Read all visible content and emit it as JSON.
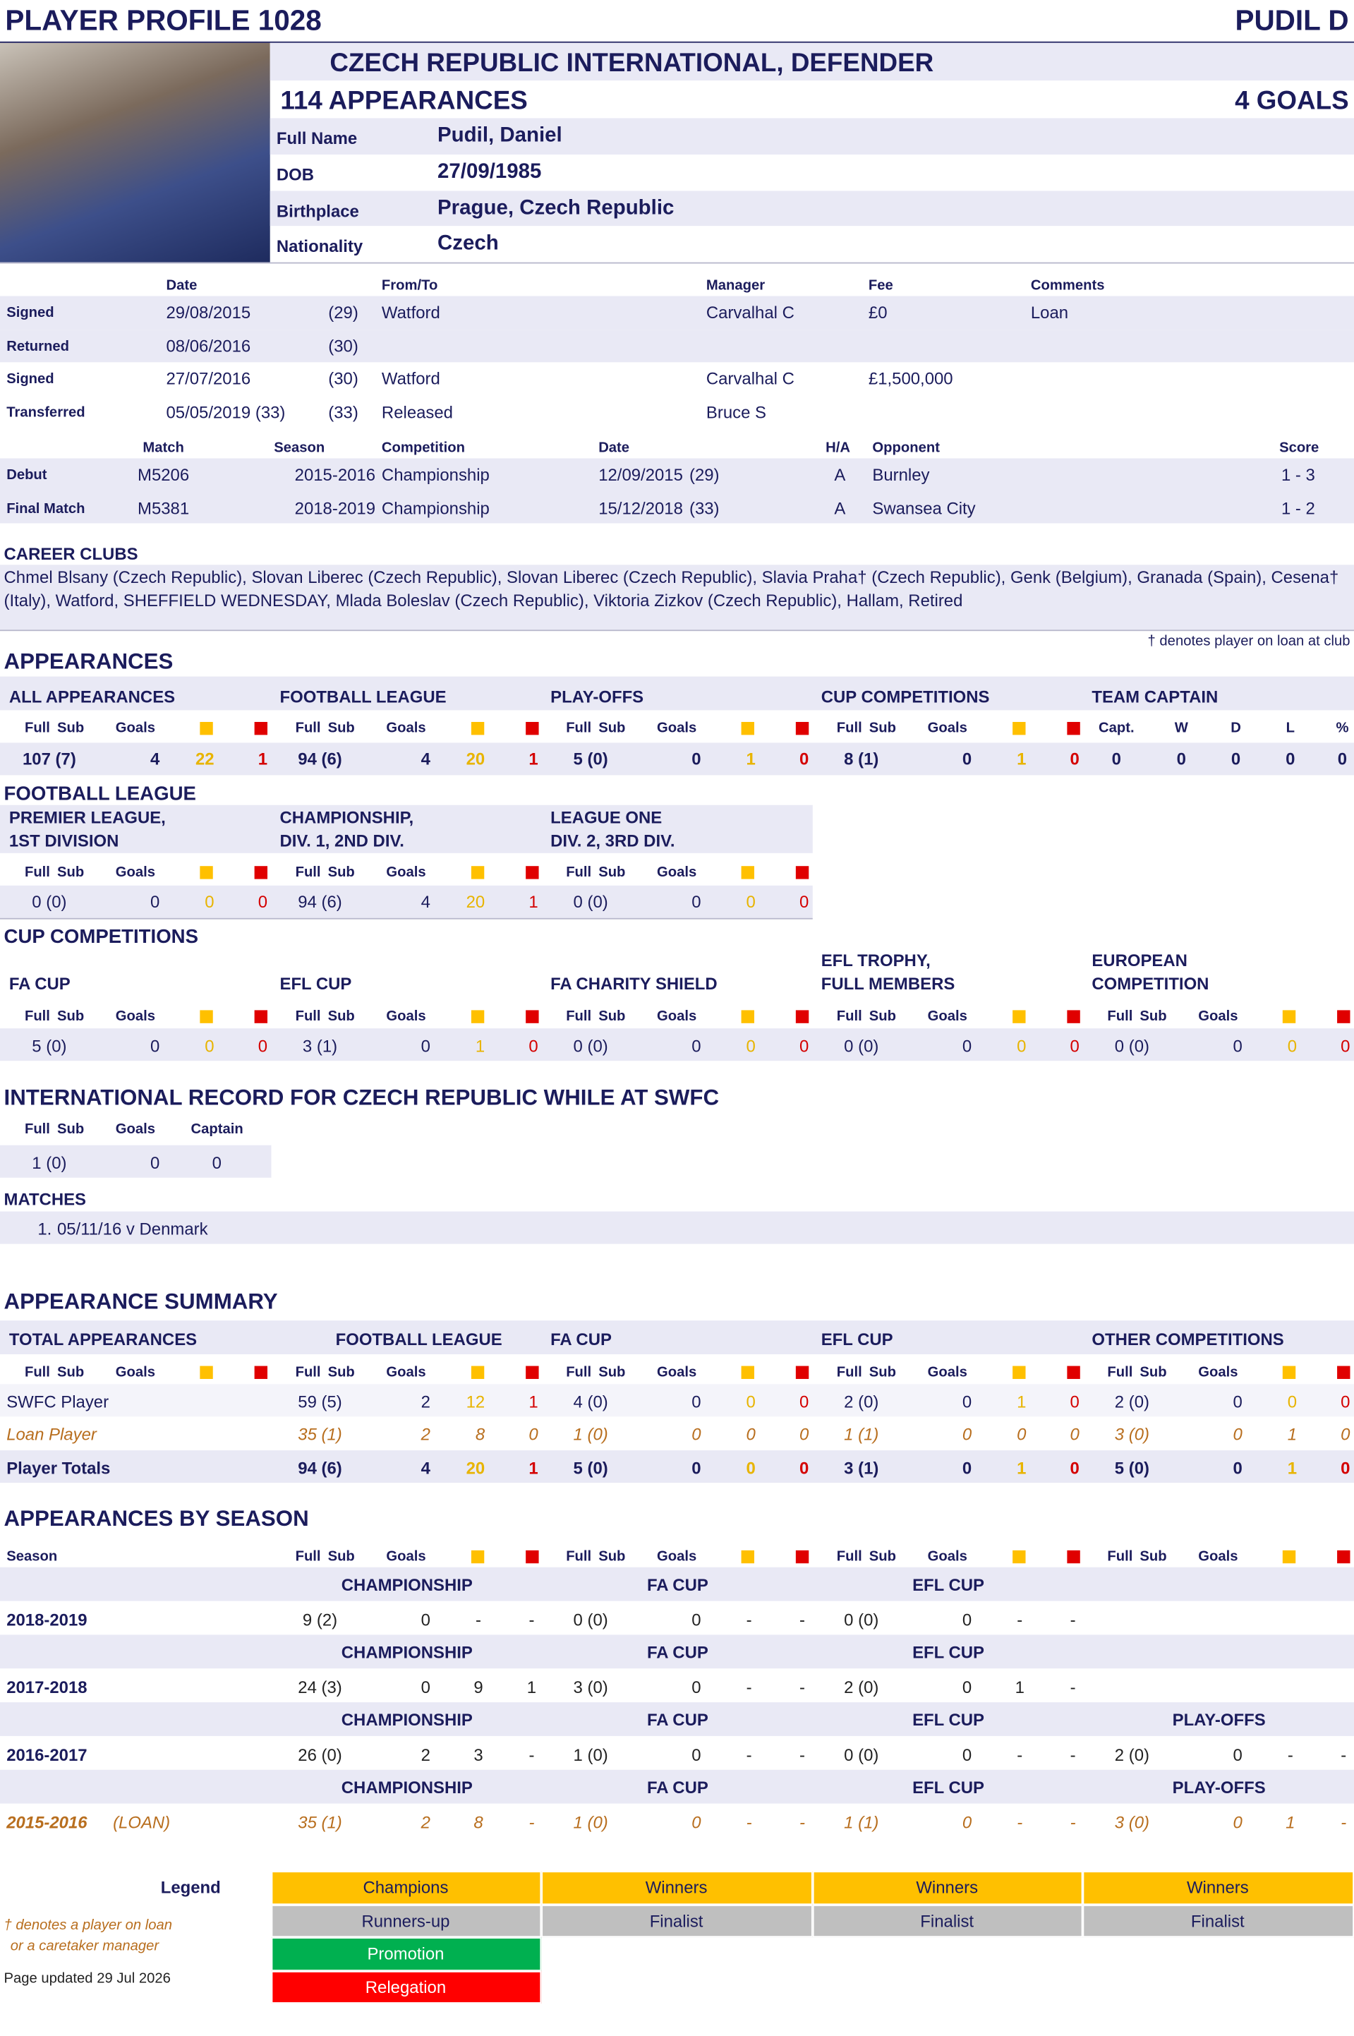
{
  "header": {
    "title": "PLAYER PROFILE 1028",
    "short_name": "PUDIL D"
  },
  "profile": {
    "headline": "CZECH REPUBLIC INTERNATIONAL, DEFENDER",
    "appearances": "114 APPEARANCES",
    "goals": "4 GOALS",
    "fields": [
      {
        "label": "Full Name",
        "value": "Pudil, Daniel"
      },
      {
        "label": "DOB",
        "value": "27/09/1985"
      },
      {
        "label": "Birthplace",
        "value": "Prague, Czech Republic"
      },
      {
        "label": "Nationality",
        "value": "Czech"
      }
    ]
  },
  "transfers": {
    "headers": {
      "date": "Date",
      "club": "From/To",
      "manager": "Manager",
      "fee": "Fee",
      "comments": "Comments"
    },
    "rows": [
      {
        "event": "Signed",
        "date": "29/08/2015",
        "age": "(29)",
        "club": "Watford",
        "manager": "Carvalhal C",
        "fee": "£0",
        "comments": "Loan"
      },
      {
        "event": "Returned",
        "date": "08/06/2016",
        "age": "(30)"
      },
      {
        "event": "Signed",
        "date": "27/07/2016",
        "age": "(30)",
        "club": "Watford",
        "manager": "Carvalhal C",
        "fee": "£1,500,000"
      },
      {
        "event": "Transferred",
        "date": "05/05/2019 (33)",
        "age": "(33)",
        "club": "Released",
        "manager": "Bruce S"
      }
    ]
  },
  "matches": {
    "headers": {
      "match": "Match",
      "season": "Season",
      "competition": "Competition",
      "date": "Date",
      "ha": "H/A",
      "opponent": "Opponent",
      "score": "Score"
    },
    "rows": [
      {
        "event": "Debut",
        "match": "M5206",
        "season": "2015-2016",
        "competition": "Championship",
        "date": "12/09/2015",
        "age": "(29)",
        "ha": "A",
        "opponent": "Burnley",
        "score": "1 - 3"
      },
      {
        "event": "Final Match",
        "match": "M5381",
        "season": "2018-2019",
        "competition": "Championship",
        "date": "15/12/2018",
        "age": "(33)",
        "ha": "A",
        "opponent": "Swansea City",
        "score": "1 - 2"
      }
    ]
  },
  "career_clubs": {
    "title": "CAREER CLUBS",
    "text": "Chmel Blsany (Czech Republic), Slovan Liberec (Czech Republic), Slovan Liberec (Czech Republic), Slavia Praha† (Czech Republic), Genk (Belgium), Granada (Spain), Cesena† (Italy), Watford, SHEFFIELD WEDNESDAY, Mlada Boleslav (Czech Republic), Viktoria Zizkov (Czech Republic), Hallam, Retired"
  },
  "stat_headers": {
    "full": "Full",
    "sub": "Sub",
    "goals": "Goals"
  },
  "appearances": {
    "title": "APPEARANCES",
    "note": "† denotes player on loan at club",
    "blocks": [
      {
        "title": [
          "ALL APPEARANCES"
        ],
        "values": [
          "107 (7)",
          4,
          22,
          1
        ]
      },
      {
        "title": [
          "FOOTBALL LEAGUE"
        ],
        "values": [
          "94 (6)",
          4,
          20,
          1
        ]
      },
      {
        "title": [
          "PLAY-OFFS"
        ],
        "values": [
          "5 (0)",
          0,
          1,
          0
        ]
      },
      {
        "title": [
          "CUP COMPETITIONS"
        ],
        "values": [
          "8 (1)",
          0,
          1,
          0
        ]
      }
    ],
    "captain": {
      "title": [
        "TEAM CAPTAIN"
      ],
      "headers": [
        "Capt.",
        "W",
        "D",
        "L",
        "%"
      ],
      "values": [
        0,
        0,
        0,
        0,
        0
      ]
    }
  },
  "football_league": {
    "title": "FOOTBALL LEAGUE",
    "blocks": [
      {
        "title": [
          "PREMIER LEAGUE,",
          "1ST DIVISION"
        ],
        "values": [
          "0 (0)",
          0,
          0,
          0
        ]
      },
      {
        "title": [
          "CHAMPIONSHIP,",
          "DIV. 1, 2ND DIV."
        ],
        "values": [
          "94 (6)",
          4,
          20,
          1
        ]
      },
      {
        "title": [
          "LEAGUE ONE",
          "DIV. 2, 3RD DIV."
        ],
        "values": [
          "0 (0)",
          0,
          0,
          0
        ]
      }
    ]
  },
  "cup_competitions": {
    "title": "CUP COMPETITIONS",
    "blocks": [
      {
        "title": [
          "FA CUP"
        ],
        "values": [
          "5 (0)",
          0,
          0,
          0
        ]
      },
      {
        "title": [
          "EFL CUP"
        ],
        "values": [
          "3 (1)",
          0,
          1,
          0
        ]
      },
      {
        "title": [
          "FA CHARITY SHIELD"
        ],
        "values": [
          "0 (0)",
          0,
          0,
          0
        ]
      },
      {
        "title": [
          "EFL TROPHY,",
          "FULL MEMBERS"
        ],
        "values": [
          "0 (0)",
          0,
          0,
          0
        ]
      },
      {
        "title": [
          "EUROPEAN",
          "COMPETITION"
        ],
        "values": [
          "0 (0)",
          0,
          0,
          0
        ]
      }
    ]
  },
  "international": {
    "title": "INTERNATIONAL RECORD FOR CZECH REPUBLIC WHILE AT SWFC",
    "captain_header": "Captain",
    "values": [
      "1 (0)",
      0,
      0
    ],
    "matches_title": "MATCHES",
    "matches": [
      {
        "number": "1.",
        "text": "05/11/16 v Denmark"
      }
    ]
  },
  "summary": {
    "title": "APPEARANCE SUMMARY",
    "columns": [
      "TOTAL APPEARANCES",
      "FOOTBALL LEAGUE",
      "FA CUP",
      "EFL CUP",
      "OTHER COMPETITIONS"
    ],
    "rows": [
      {
        "label": "SWFC Player",
        "stats": [
          [
            "59 (5)",
            2,
            12,
            1
          ],
          [
            "4 (0)",
            0,
            0,
            0
          ],
          [
            "2 (0)",
            0,
            1,
            0
          ],
          [
            "2 (0)",
            0,
            0,
            0
          ]
        ]
      },
      {
        "label": "Loan Player",
        "stats": [
          [
            "35 (1)",
            2,
            8,
            0
          ],
          [
            "1 (0)",
            0,
            0,
            0
          ],
          [
            "1 (1)",
            0,
            0,
            0
          ],
          [
            "3 (0)",
            0,
            1,
            0
          ]
        ]
      },
      {
        "label": "Player Totals",
        "stats": [
          [
            "94 (6)",
            4,
            20,
            1
          ],
          [
            "5 (0)",
            0,
            0,
            0
          ],
          [
            "3 (1)",
            0,
            1,
            0
          ],
          [
            "5 (0)",
            0,
            1,
            0
          ]
        ]
      }
    ]
  },
  "by_season": {
    "title": "APPEARANCES BY SEASON",
    "season_header": "Season",
    "rows": [
      {
        "season": "2018-2019",
        "comps": [
          {
            "name": "CHAMPIONSHIP",
            "values": [
              "9 (2)",
              0,
              "-",
              "-"
            ]
          },
          {
            "name": "FA CUP",
            "values": [
              "0 (0)",
              0,
              "-",
              "-"
            ]
          },
          {
            "name": "EFL CUP",
            "values": [
              "0 (0)",
              0,
              "-",
              "-"
            ]
          }
        ]
      },
      {
        "season": "2017-2018",
        "comps": [
          {
            "name": "CHAMPIONSHIP",
            "values": [
              "24 (3)",
              0,
              9,
              1
            ]
          },
          {
            "name": "FA CUP",
            "values": [
              "3 (0)",
              0,
              "-",
              "-"
            ]
          },
          {
            "name": "EFL CUP",
            "values": [
              "2 (0)",
              0,
              1,
              "-"
            ]
          }
        ]
      },
      {
        "season": "2016-2017",
        "comps": [
          {
            "name": "CHAMPIONSHIP",
            "values": [
              "26 (0)",
              2,
              3,
              "-"
            ]
          },
          {
            "name": "FA CUP",
            "values": [
              "1 (0)",
              0,
              "-",
              "-"
            ]
          },
          {
            "name": "EFL CUP",
            "values": [
              "0 (0)",
              0,
              "-",
              "-"
            ]
          },
          {
            "name": "PLAY-OFFS",
            "values": [
              "2 (0)",
              0,
              "-",
              "-"
            ]
          }
        ]
      },
      {
        "season": "2015-2016",
        "note": "(LOAN)",
        "comps": [
          {
            "name": "CHAMPIONSHIP",
            "values": [
              "35 (1)",
              2,
              8,
              "-"
            ]
          },
          {
            "name": "FA CUP",
            "values": [
              "1 (0)",
              0,
              "-",
              "-"
            ]
          },
          {
            "name": "EFL CUP",
            "values": [
              "1 (1)",
              0,
              "-",
              "-"
            ]
          },
          {
            "name": "PLAY-OFFS",
            "values": [
              "3 (0)",
              0,
              1,
              "-"
            ]
          }
        ]
      }
    ]
  },
  "legend": {
    "title": "Legend",
    "columns": [
      [
        "Champions",
        "Runners-up",
        "Promotion",
        "Relegation"
      ],
      [
        "Winners",
        "Finalist"
      ],
      [
        "Winners",
        "Finalist"
      ],
      [
        "Winners",
        "Finalist"
      ]
    ],
    "footnote": [
      "† denotes a player on loan",
      "or a caretaker manager"
    ],
    "updated": "Page updated 29 Jul 2026"
  }
}
